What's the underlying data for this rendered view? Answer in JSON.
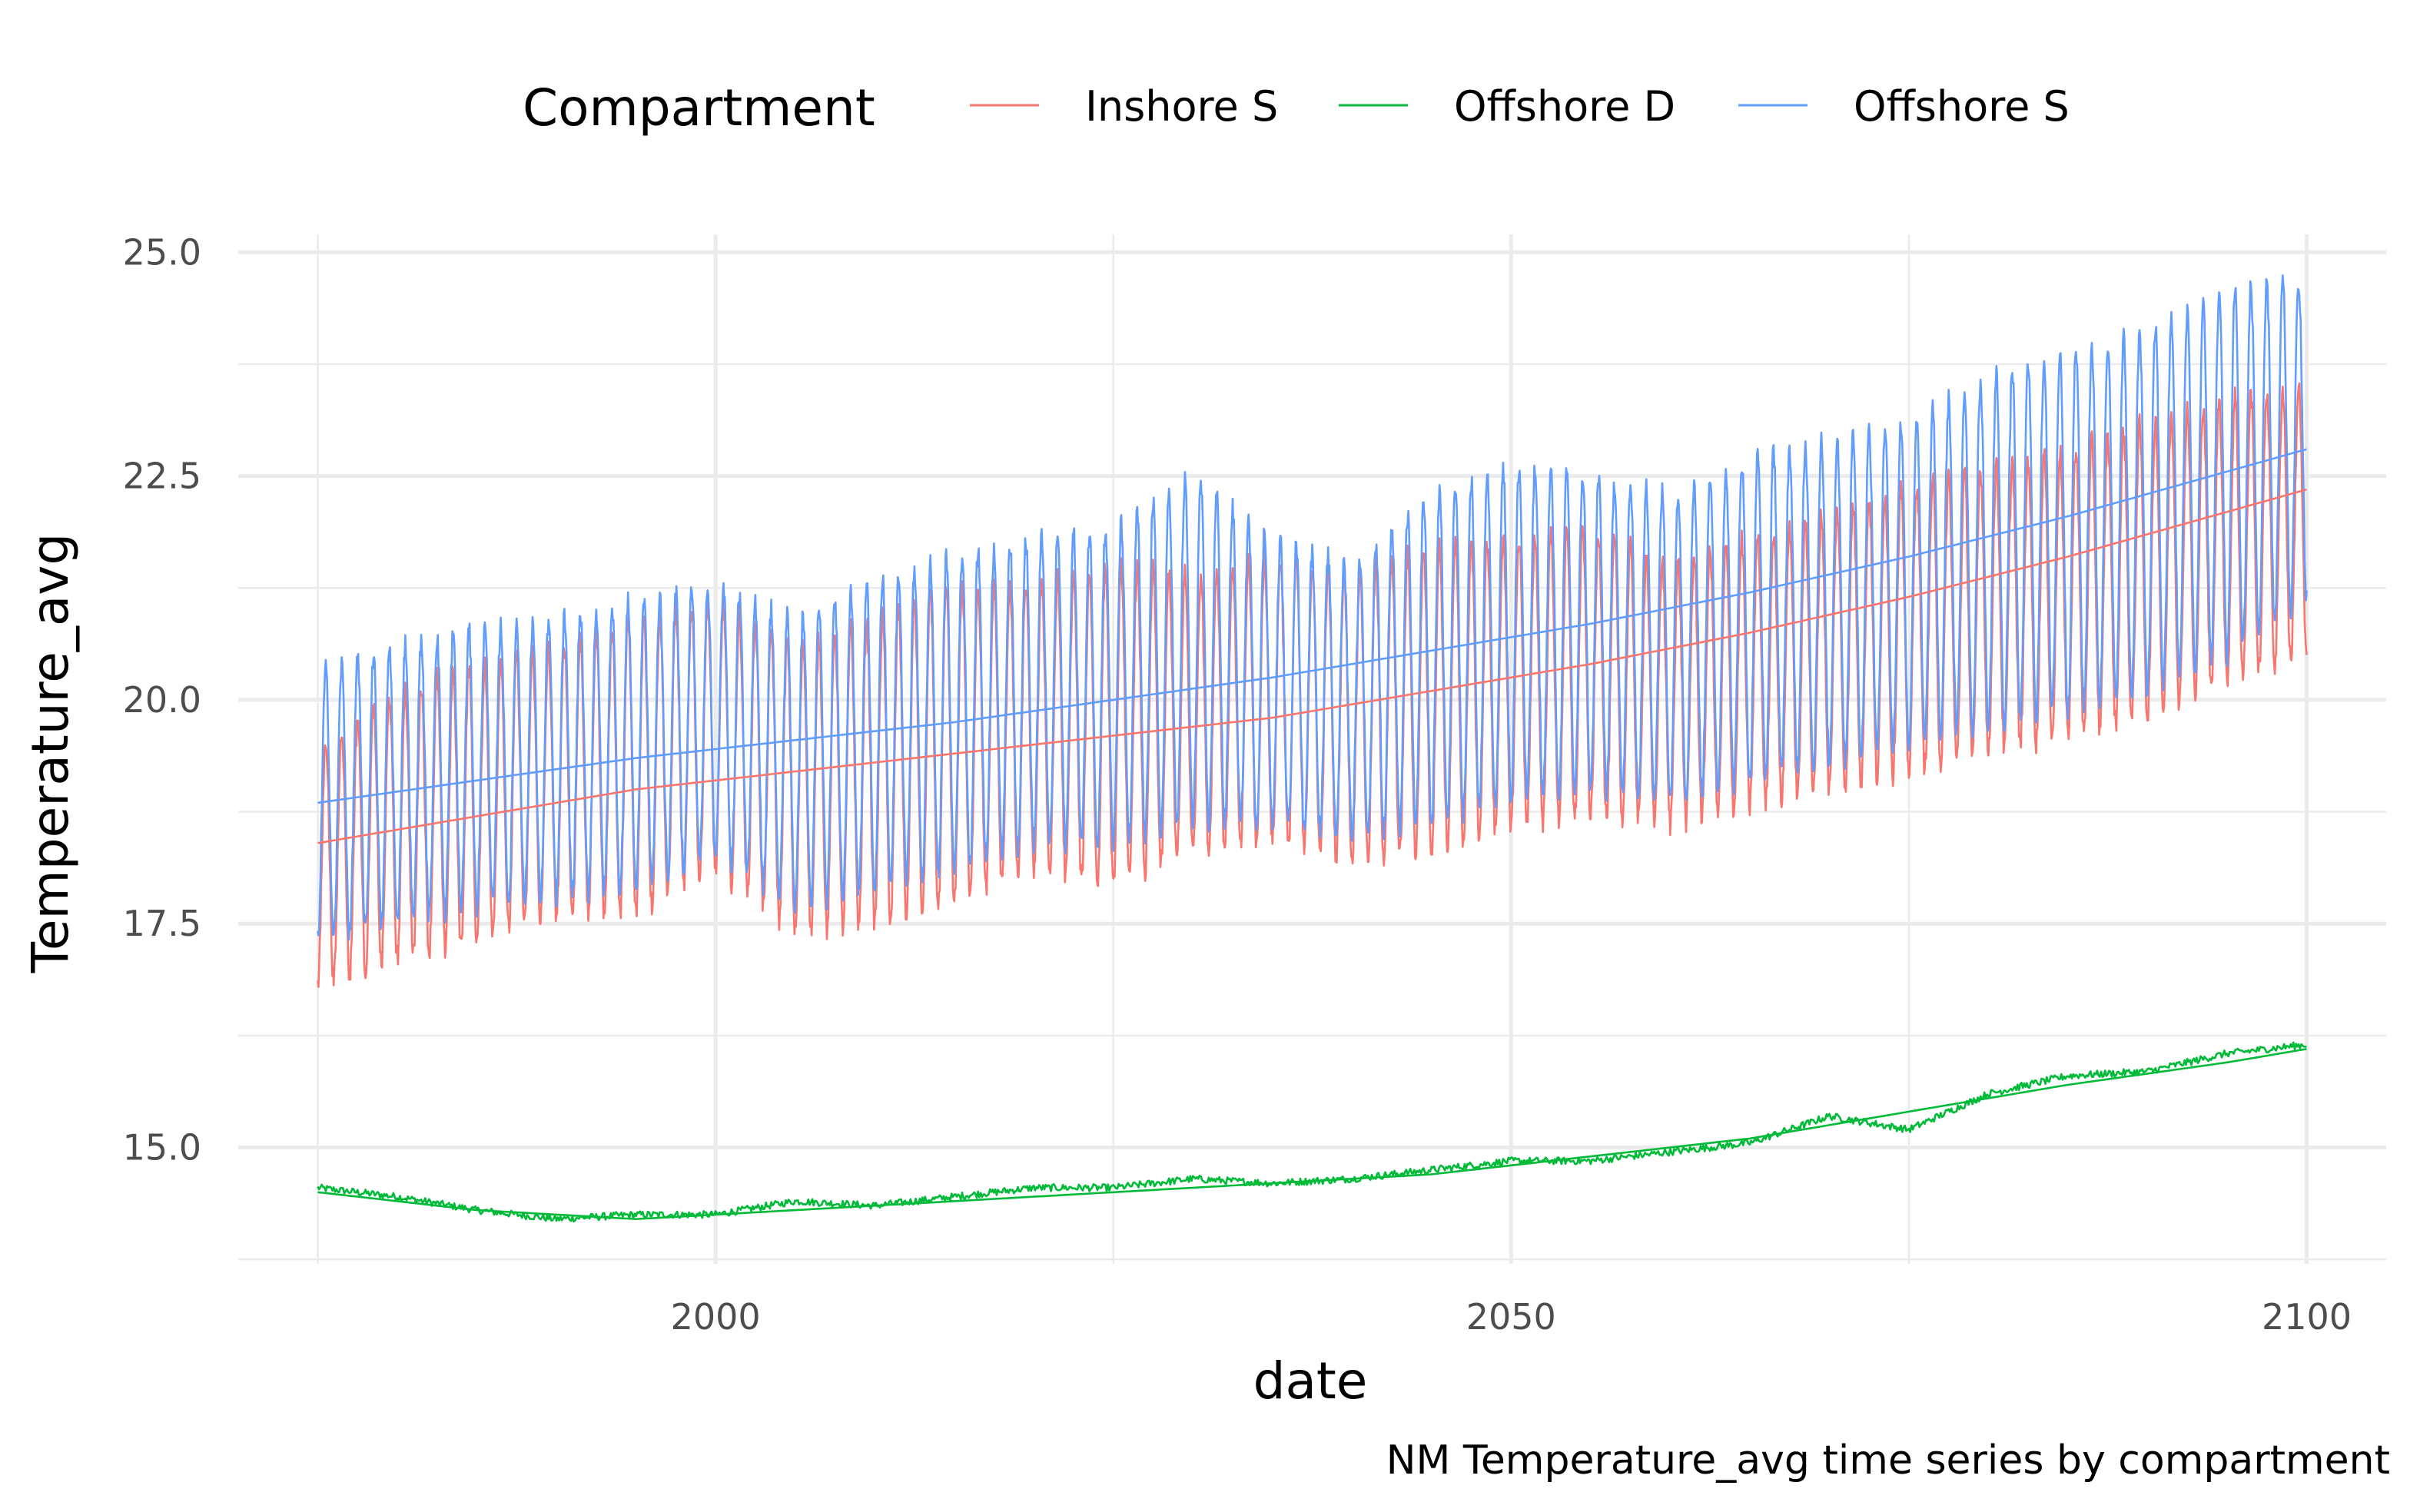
{
  "chart_data": {
    "type": "line",
    "title": "",
    "caption": "NM Temperature_avg time series by compartment",
    "xlabel": "date",
    "ylabel": "Temperature_avg",
    "x_type": "date",
    "xlim": [
      "1970-01-01",
      "2105-01-01"
    ],
    "ylim": [
      13.7,
      25.2
    ],
    "x_ticks": [
      2000,
      2050,
      2100
    ],
    "x_tick_labels": [
      "2000",
      "2050",
      "2100"
    ],
    "y_ticks": [
      15.0,
      17.5,
      20.0,
      22.5,
      25.0
    ],
    "y_tick_labels": [
      "15.0",
      "17.5",
      "20.0",
      "22.5",
      "25.0"
    ],
    "grid": true,
    "legend": {
      "title": "Compartment",
      "position": "top",
      "entries": [
        "Inshore S",
        "Offshore D",
        "Offshore S"
      ]
    },
    "x_range": [
      "1975-01-01",
      "2100-01-01"
    ],
    "series": [
      {
        "name": "Inshore S",
        "color": "#F8766D",
        "kind": "seasonal",
        "x": [
          "1975-01-01",
          "1980-01-01",
          "1985-01-01",
          "1990-01-01",
          "1995-01-01",
          "2000-01-01",
          "2005-01-01",
          "2010-01-01",
          "2015-01-01",
          "2020-01-01",
          "2025-01-01",
          "2030-01-01",
          "2035-01-01",
          "2040-01-01",
          "2045-01-01",
          "2050-01-01",
          "2055-01-01",
          "2060-01-01",
          "2065-01-01",
          "2070-01-01",
          "2075-01-01",
          "2080-01-01",
          "2085-01-01",
          "2090-01-01",
          "2095-01-01",
          "2100-01-01"
        ],
        "seasonal_max": [
          19.5,
          20.1,
          20.4,
          20.6,
          20.9,
          21.1,
          20.6,
          20.9,
          21.3,
          21.3,
          21.5,
          21.4,
          21.6,
          21.4,
          21.7,
          21.8,
          21.9,
          21.5,
          21.8,
          22.1,
          22.4,
          22.6,
          22.8,
          23.1,
          23.4,
          23.5
        ],
        "seasonal_min": [
          16.8,
          17.1,
          17.3,
          17.6,
          17.6,
          18.1,
          17.4,
          17.5,
          17.7,
          18.1,
          17.9,
          18.3,
          18.4,
          18.2,
          18.3,
          18.6,
          18.7,
          18.6,
          18.8,
          19.0,
          19.2,
          19.4,
          19.6,
          19.8,
          20.2,
          20.5
        ]
      },
      {
        "name": "Inshore S",
        "color": "#F8766D",
        "kind": "trend",
        "x": [
          "1975-01-01",
          "1985-01-01",
          "1995-01-01",
          "2005-01-01",
          "2015-01-01",
          "2025-01-01",
          "2035-01-01",
          "2045-01-01",
          "2055-01-01",
          "2065-01-01",
          "2075-01-01",
          "2085-01-01",
          "2095-01-01",
          "2100-01-01"
        ],
        "values": [
          18.4,
          18.7,
          19.0,
          19.2,
          19.4,
          19.6,
          19.8,
          20.1,
          20.4,
          20.75,
          21.15,
          21.6,
          22.1,
          22.35
        ]
      },
      {
        "name": "Offshore S",
        "color": "#619CFF",
        "kind": "seasonal",
        "x": [
          "1975-01-01",
          "1980-01-01",
          "1985-01-01",
          "1990-01-01",
          "1995-01-01",
          "2000-01-01",
          "2005-01-01",
          "2010-01-01",
          "2015-01-01",
          "2020-01-01",
          "2025-01-01",
          "2030-01-01",
          "2035-01-01",
          "2040-01-01",
          "2045-01-01",
          "2050-01-01",
          "2055-01-01",
          "2060-01-01",
          "2065-01-01",
          "2070-01-01",
          "2075-01-01",
          "2080-01-01",
          "2085-01-01",
          "2090-01-01",
          "2095-01-01",
          "2100-01-01"
        ],
        "seasonal_max": [
          20.3,
          20.6,
          20.8,
          20.9,
          21.1,
          21.3,
          20.9,
          21.3,
          21.6,
          21.8,
          21.9,
          22.5,
          21.8,
          21.5,
          22.3,
          22.6,
          22.5,
          22.3,
          22.7,
          22.9,
          23.1,
          23.6,
          23.9,
          24.1,
          24.6,
          24.7
        ],
        "seasonal_min": [
          17.3,
          17.5,
          17.7,
          17.8,
          17.9,
          18.3,
          17.7,
          17.9,
          18.1,
          18.4,
          18.4,
          18.6,
          18.6,
          18.5,
          18.6,
          18.9,
          19.0,
          18.9,
          19.1,
          19.3,
          19.5,
          19.7,
          19.9,
          20.1,
          20.5,
          21.1
        ]
      },
      {
        "name": "Offshore S",
        "color": "#619CFF",
        "kind": "trend",
        "x": [
          "1975-01-01",
          "1985-01-01",
          "1995-01-01",
          "2005-01-01",
          "2015-01-01",
          "2025-01-01",
          "2035-01-01",
          "2045-01-01",
          "2055-01-01",
          "2065-01-01",
          "2075-01-01",
          "2085-01-01",
          "2095-01-01",
          "2100-01-01"
        ],
        "values": [
          18.85,
          19.1,
          19.35,
          19.55,
          19.75,
          20.0,
          20.25,
          20.55,
          20.85,
          21.2,
          21.6,
          22.05,
          22.55,
          22.8
        ]
      },
      {
        "name": "Offshore D",
        "color": "#00BA38",
        "kind": "noisy",
        "x": [
          "1975-01-01",
          "1980-01-01",
          "1985-01-01",
          "1990-01-01",
          "1995-01-01",
          "2000-01-01",
          "2005-01-01",
          "2010-01-01",
          "2015-01-01",
          "2020-01-01",
          "2025-01-01",
          "2030-01-01",
          "2035-01-01",
          "2040-01-01",
          "2045-01-01",
          "2050-01-01",
          "2055-01-01",
          "2060-01-01",
          "2065-01-01",
          "2070-01-01",
          "2075-01-01",
          "2080-01-01",
          "2085-01-01",
          "2090-01-01",
          "2095-01-01",
          "2100-01-01"
        ],
        "values": [
          14.55,
          14.45,
          14.3,
          14.2,
          14.25,
          14.25,
          14.4,
          14.35,
          14.45,
          14.55,
          14.55,
          14.65,
          14.6,
          14.65,
          14.75,
          14.85,
          14.85,
          14.95,
          15.05,
          15.35,
          15.2,
          15.6,
          15.8,
          15.85,
          16.05,
          16.15
        ]
      },
      {
        "name": "Offshore D",
        "color": "#00BA38",
        "kind": "trend",
        "x": [
          "1975-01-01",
          "1985-01-01",
          "1995-01-01",
          "2005-01-01",
          "2015-01-01",
          "2025-01-01",
          "2035-01-01",
          "2045-01-01",
          "2055-01-01",
          "2065-01-01",
          "2075-01-01",
          "2085-01-01",
          "2095-01-01",
          "2100-01-01"
        ],
        "values": [
          14.5,
          14.3,
          14.2,
          14.3,
          14.4,
          14.5,
          14.6,
          14.7,
          14.9,
          15.1,
          15.4,
          15.7,
          15.95,
          16.1
        ]
      }
    ]
  }
}
